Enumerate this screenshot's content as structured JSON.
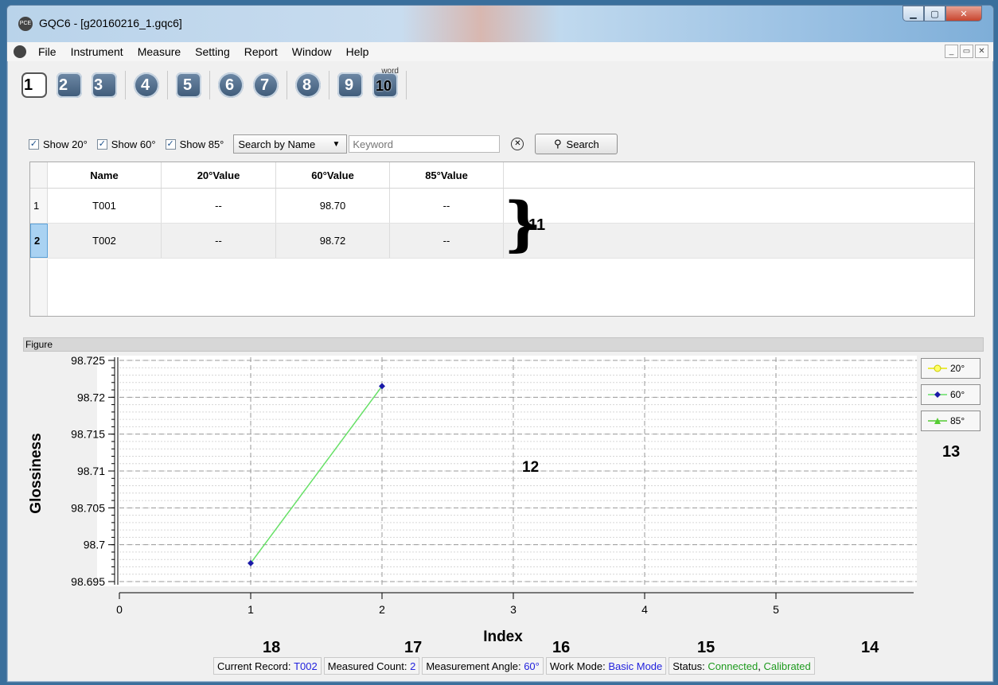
{
  "window": {
    "title": "GQC6 - [g20160216_1.gqc6]",
    "icon_text": "PCE"
  },
  "menu": [
    "File",
    "Instrument",
    "Measure",
    "Setting",
    "Report",
    "Window",
    "Help"
  ],
  "toolbar": {
    "buttons": [
      {
        "num": "1",
        "icon": "new-document-icon"
      },
      {
        "num": "2",
        "icon": "open-folder-icon"
      },
      {
        "num": "3",
        "icon": "save-document-icon"
      },
      {
        "num": "4",
        "icon": "connect-device-icon"
      },
      {
        "num": "5",
        "icon": "measure-icon"
      },
      {
        "num": "6",
        "icon": "settings-dial-icon"
      },
      {
        "num": "7",
        "icon": "calibrate-icon"
      },
      {
        "num": "8",
        "icon": "refresh-icon"
      },
      {
        "num": "9",
        "icon": "print-icon"
      },
      {
        "num": "10",
        "icon": "export-word-icon",
        "sub": "word"
      }
    ]
  },
  "filter": {
    "show20": "Show 20°",
    "show60": "Show 60°",
    "show85": "Show 85°",
    "search_mode": "Search by Name",
    "keyword_placeholder": "Keyword",
    "search_label": "Search"
  },
  "table": {
    "headers": [
      "Name",
      "20°Value",
      "60°Value",
      "85°Value"
    ],
    "rows": [
      {
        "index": "1",
        "name": "T001",
        "v20": "--",
        "v60": "98.70",
        "v85": "--"
      },
      {
        "index": "2",
        "name": "T002",
        "v20": "--",
        "v60": "98.72",
        "v85": "--"
      }
    ]
  },
  "annotations": {
    "a11": "11",
    "a12": "12",
    "a13": "13",
    "a14": "14",
    "a15": "15",
    "a16": "16",
    "a17": "17",
    "a18": "18"
  },
  "figure": {
    "panel_title": "Figure"
  },
  "chart_data": {
    "type": "line",
    "xlabel": "Index",
    "ylabel": "Glossiness",
    "xlim": [
      0,
      6
    ],
    "ylim": [
      98.695,
      98.725
    ],
    "xticks": [
      0,
      1,
      2,
      3,
      4,
      5
    ],
    "yticks": [
      98.695,
      98.7,
      98.705,
      98.71,
      98.715,
      98.72,
      98.725
    ],
    "ytick_labels": [
      "98.695",
      "98.7",
      "98.705",
      "98.71",
      "98.715",
      "98.72",
      "98.725"
    ],
    "grid": true,
    "legend_position": "right",
    "series": [
      {
        "name": "20°",
        "x": [],
        "y": [],
        "color": "#e6e600",
        "marker": "circle"
      },
      {
        "name": "60°",
        "x": [
          1,
          2
        ],
        "y": [
          98.6975,
          98.7215
        ],
        "color": "#66e066",
        "marker_color": "#1a1aa8",
        "marker": "diamond"
      },
      {
        "name": "85°",
        "x": [],
        "y": [],
        "color": "#55cc33",
        "marker": "triangle"
      }
    ]
  },
  "status": {
    "current_record_label": "Current Record:",
    "current_record_value": "T002",
    "measured_count_label": "Measured Count:",
    "measured_count_value": "2",
    "angle_label": "Measurement Angle:",
    "angle_value": "60°",
    "mode_label": "Work Mode:",
    "mode_value": "Basic Mode",
    "status_label": "Status:",
    "status_connected": "Connected",
    "status_sep": ",",
    "status_calibrated": "Calibrated"
  }
}
